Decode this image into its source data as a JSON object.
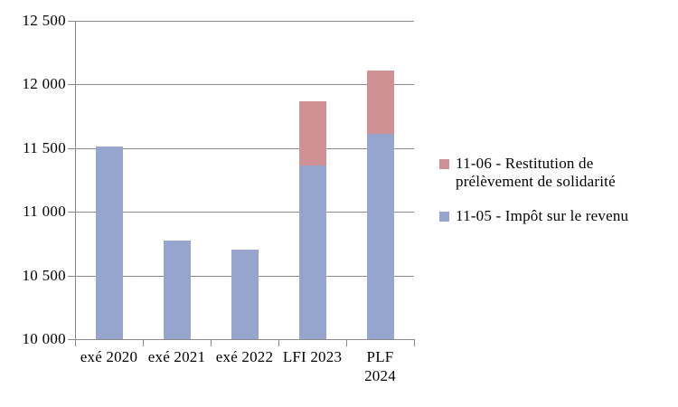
{
  "page": {
    "background": "#FFFFFF"
  },
  "chart_data": {
    "type": "bar",
    "stacked": true,
    "title": "",
    "xlabel": "",
    "ylabel": "",
    "categories": [
      "exé 2020",
      "exé 2021",
      "exé 2022",
      "LFI 2023",
      "PLF\n2024"
    ],
    "series": [
      {
        "name": "11-05 - Impôt sur le revenu",
        "color": "#95A5CE",
        "values": [
          11510,
          10775,
          10700,
          11365,
          11610
        ]
      },
      {
        "name": "11-06 - Restitution de prélèvement de solidarité",
        "color": "#D09194",
        "values": [
          0,
          0,
          0,
          505,
          500
        ]
      }
    ],
    "ylim": [
      10000,
      12500
    ],
    "ytick_step": 500,
    "ytick_labels": [
      "12 500",
      "12 000",
      "11 500",
      "11 000",
      "10 500",
      "10 000"
    ],
    "grid": true,
    "axis_color": "#8A8A8A",
    "text_color": "#000000",
    "legend": {
      "position": "right",
      "entries": [
        1,
        0
      ]
    }
  }
}
